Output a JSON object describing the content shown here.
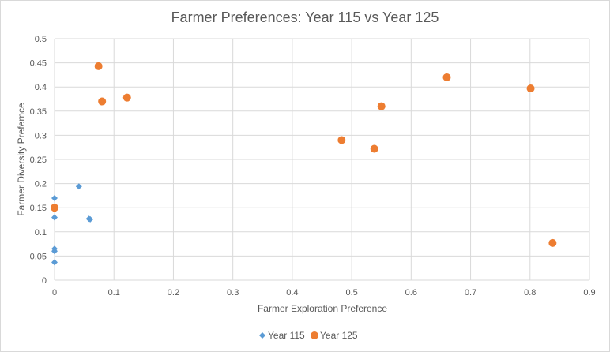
{
  "chart_data": {
    "type": "scatter",
    "title": "Farmer Preferences: Year 115 vs Year 125",
    "xlabel": "Farmer Exploration Preference",
    "ylabel": "Farmer Diversity Prefernce",
    "xlim": [
      0,
      0.9
    ],
    "ylim": [
      0,
      0.5
    ],
    "x_ticks": [
      "0",
      "0.1",
      "0.2",
      "0.3",
      "0.4",
      "0.5",
      "0.6",
      "0.7",
      "0.8",
      "0.9"
    ],
    "y_ticks": [
      "0",
      "0.05",
      "0.1",
      "0.15",
      "0.2",
      "0.25",
      "0.3",
      "0.35",
      "0.4",
      "0.45",
      "0.5"
    ],
    "grid": true,
    "legend_position": "bottom",
    "series": [
      {
        "name": "Year 115",
        "marker": "diamond",
        "color": "#5b9bd5",
        "points": [
          {
            "x": 0.0,
            "y": 0.17
          },
          {
            "x": 0.0,
            "y": 0.13
          },
          {
            "x": 0.0,
            "y": 0.065
          },
          {
            "x": 0.0,
            "y": 0.06
          },
          {
            "x": 0.0,
            "y": 0.037
          },
          {
            "x": 0.0,
            "y": 0.15
          },
          {
            "x": 0.041,
            "y": 0.194
          },
          {
            "x": 0.058,
            "y": 0.127
          },
          {
            "x": 0.06,
            "y": 0.126
          }
        ]
      },
      {
        "name": "Year 125",
        "marker": "circle",
        "color": "#ed7d31",
        "points": [
          {
            "x": 0.074,
            "y": 0.443
          },
          {
            "x": 0.08,
            "y": 0.37
          },
          {
            "x": 0.122,
            "y": 0.378
          },
          {
            "x": 0.0,
            "y": 0.15
          },
          {
            "x": 0.483,
            "y": 0.29
          },
          {
            "x": 0.538,
            "y": 0.272
          },
          {
            "x": 0.55,
            "y": 0.36
          },
          {
            "x": 0.66,
            "y": 0.42
          },
          {
            "x": 0.801,
            "y": 0.397
          },
          {
            "x": 0.838,
            "y": 0.077
          }
        ]
      }
    ]
  }
}
